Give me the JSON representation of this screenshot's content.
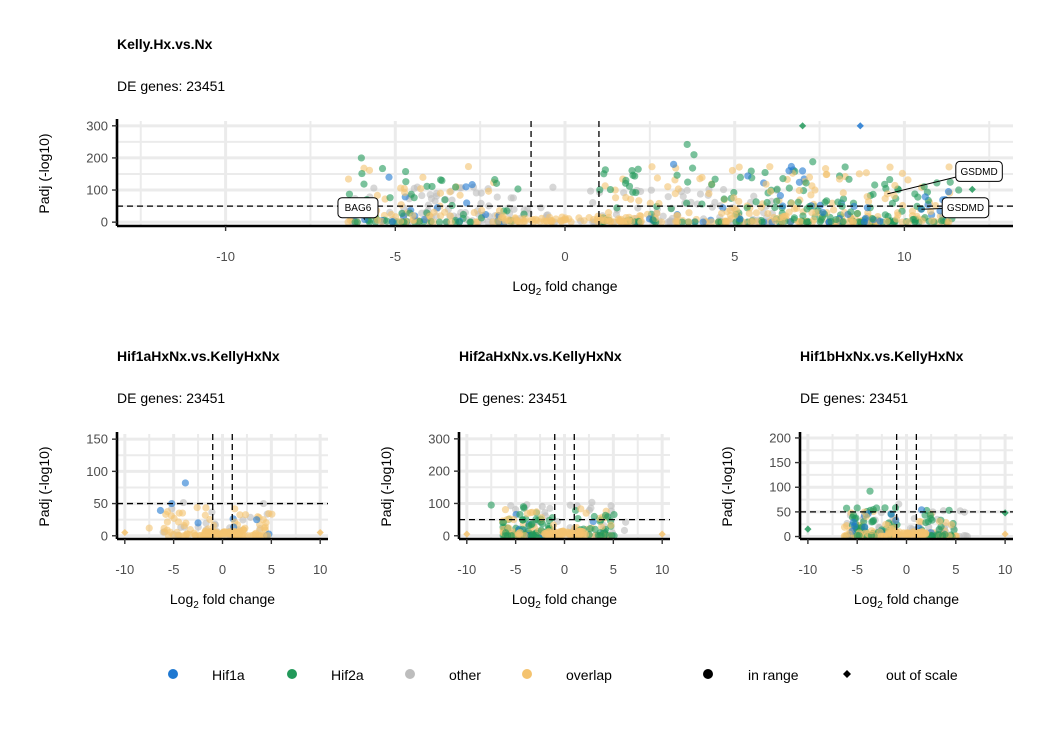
{
  "colors": {
    "Hif1a": "#1f78d1",
    "Hif2a": "#22995a",
    "other": "#bdbdbd",
    "overlap": "#f4c36f"
  },
  "legend": {
    "color_items": [
      {
        "key": "Hif1a",
        "label": "Hif1a"
      },
      {
        "key": "Hif2a",
        "label": "Hif2a"
      },
      {
        "key": "other",
        "label": "other"
      },
      {
        "key": "overlap",
        "label": "overlap"
      }
    ],
    "shape_items": [
      {
        "shape": "circle",
        "label": "in range"
      },
      {
        "shape": "diamond",
        "label": "out of scale"
      }
    ]
  },
  "chart_data": [
    {
      "type": "scatter",
      "title": "Kelly.Hx.vs.Nx",
      "subtitle": "DE genes: 23451",
      "xlabel_main": "Log",
      "xlabel_sub": "2",
      "xlabel_rest": " fold change",
      "ylabel": "Padj (-log10)",
      "xlim": [
        -13.2,
        13.2
      ],
      "ylim": [
        -12,
        315
      ],
      "xticks": [
        -10,
        -5,
        0,
        5,
        10
      ],
      "yticks": [
        0,
        100,
        200,
        300
      ],
      "vlines": [
        -1,
        1
      ],
      "hline": 50,
      "seed": 11,
      "n_left": 150,
      "n_right": 420,
      "points": [
        {
          "x": -6.0,
          "y": 200,
          "g": "Hif2a",
          "s": "circle"
        },
        {
          "x": -5.9,
          "y": 8,
          "g": "Hif1a",
          "s": "circle"
        },
        {
          "x": 7.0,
          "y": 300,
          "g": "Hif2a",
          "s": "diamond"
        },
        {
          "x": 8.7,
          "y": 300,
          "g": "Hif1a",
          "s": "diamond"
        },
        {
          "x": 3.6,
          "y": 242,
          "g": "Hif2a",
          "s": "circle"
        },
        {
          "x": 3.2,
          "y": 180,
          "g": "Hif1a",
          "s": "circle"
        },
        {
          "x": 6.6,
          "y": 160,
          "g": "Hif1a",
          "s": "circle"
        },
        {
          "x": 9.5,
          "y": 88,
          "g": "overlap",
          "s": "circle"
        },
        {
          "x": 11.3,
          "y": 95,
          "g": "Hif1a",
          "s": "circle"
        },
        {
          "x": 11.6,
          "y": 100,
          "g": "Hif2a",
          "s": "circle"
        },
        {
          "x": 12.0,
          "y": 102,
          "g": "Hif2a",
          "s": "diamond"
        },
        {
          "x": 10.5,
          "y": 40,
          "g": "Hif1a",
          "s": "circle"
        },
        {
          "x": 7.6,
          "y": 30,
          "g": "Hif1a",
          "s": "circle"
        },
        {
          "x": 3.8,
          "y": 210,
          "g": "Hif2a",
          "s": "circle"
        },
        {
          "x": 7.3,
          "y": 188,
          "g": "Hif2a",
          "s": "circle"
        }
      ],
      "labels": [
        {
          "text": "BAG6",
          "x": -5.9,
          "y": 8,
          "lx": -6.1,
          "ly": 45
        },
        {
          "text": "GSDMD",
          "x": 9.5,
          "y": 88,
          "lx": 12.2,
          "ly": 158
        },
        {
          "text": "GSDMD",
          "x": 10.5,
          "y": 40,
          "lx": 11.8,
          "ly": 45
        }
      ]
    },
    {
      "type": "scatter",
      "title": "Hif1aHxNx.vs.KellyHxNx",
      "subtitle": "DE genes: 23451",
      "xlabel_main": "Log",
      "xlabel_sub": "2",
      "xlabel_rest": " fold change",
      "ylabel": "Padj (-log10)",
      "xlim": [
        -10.8,
        10.8
      ],
      "ylim": [
        -5,
        158
      ],
      "xticks": [
        -10,
        -5,
        0,
        5,
        10
      ],
      "yticks": [
        0,
        50,
        100,
        150
      ],
      "vlines": [
        -1,
        1
      ],
      "hline": 50,
      "seed": 23,
      "n_left": 45,
      "n_right": 45,
      "points": [
        {
          "x": -3.8,
          "y": 82,
          "g": "Hif1a",
          "s": "circle"
        },
        {
          "x": -5.2,
          "y": 50,
          "g": "Hif1a",
          "s": "circle"
        },
        {
          "x": -10.0,
          "y": 5,
          "g": "overlap",
          "s": "diamond"
        },
        {
          "x": 10.0,
          "y": 5,
          "g": "overlap",
          "s": "diamond"
        },
        {
          "x": 3.5,
          "y": 25,
          "g": "Hif1a",
          "s": "circle"
        },
        {
          "x": -2.5,
          "y": 20,
          "g": "Hif1a",
          "s": "circle"
        },
        {
          "x": -7.5,
          "y": 12,
          "g": "overlap",
          "s": "circle"
        }
      ],
      "labels": []
    },
    {
      "type": "scatter",
      "title": "Hif2aHxNx.vs.KellyHxNx",
      "subtitle": "DE genes: 23451",
      "xlabel_main": "Log",
      "xlabel_sub": "2",
      "xlabel_rest": " fold change",
      "ylabel": "Padj (-log10)",
      "xlim": [
        -10.8,
        10.8
      ],
      "ylim": [
        -10,
        315
      ],
      "xticks": [
        -10,
        -5,
        0,
        5,
        10
      ],
      "yticks": [
        0,
        100,
        200,
        300
      ],
      "vlines": [
        -1,
        1
      ],
      "hline": 50,
      "seed": 37,
      "n_left": 120,
      "n_right": 60,
      "points": [
        {
          "x": -7.5,
          "y": 95,
          "g": "Hif2a",
          "s": "circle"
        },
        {
          "x": -4.2,
          "y": 90,
          "g": "Hif2a",
          "s": "circle"
        },
        {
          "x": -10.0,
          "y": 5,
          "g": "overlap",
          "s": "diamond"
        },
        {
          "x": 10.0,
          "y": 5,
          "g": "overlap",
          "s": "diamond"
        }
      ],
      "labels": []
    },
    {
      "type": "scatter",
      "title": "Hif1bHxNx.vs.KellyHxNx",
      "subtitle": "DE genes: 23451",
      "xlabel_main": "Log",
      "xlabel_sub": "2",
      "xlabel_rest": " fold change",
      "ylabel": "Padj (-log10)",
      "xlim": [
        -10.8,
        10.8
      ],
      "ylim": [
        -5,
        208
      ],
      "xticks": [
        -10,
        -5,
        0,
        5,
        10
      ],
      "yticks": [
        0,
        50,
        100,
        150,
        200
      ],
      "vlines": [
        -1,
        1
      ],
      "hline": 50,
      "seed": 53,
      "n_left": 150,
      "n_right": 60,
      "points": [
        {
          "x": -3.7,
          "y": 92,
          "g": "Hif2a",
          "s": "circle"
        },
        {
          "x": -5.0,
          "y": 58,
          "g": "Hif2a",
          "s": "circle"
        },
        {
          "x": -10.0,
          "y": 15,
          "g": "Hif2a",
          "s": "diamond"
        },
        {
          "x": 10.0,
          "y": 48,
          "g": "Hif2a",
          "s": "diamond"
        },
        {
          "x": 10.0,
          "y": 5,
          "g": "overlap",
          "s": "diamond"
        }
      ],
      "labels": []
    }
  ]
}
